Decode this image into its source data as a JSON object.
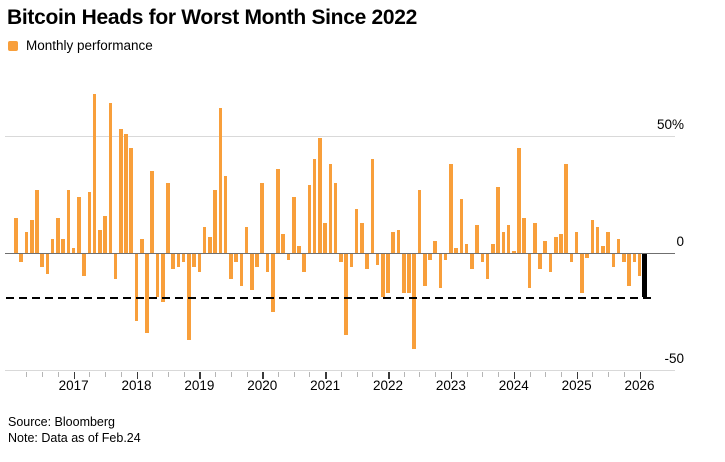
{
  "chart_data": {
    "type": "bar",
    "title": "Bitcoin Heads for Worst Month Since 2022",
    "series_name": "Monthly performance",
    "unit": "percent",
    "start_month": "2016-02",
    "end_month": "2026-02",
    "values": [
      15,
      -4,
      9,
      14,
      27,
      -6,
      -9,
      6,
      15,
      6,
      27,
      2,
      24,
      -10,
      26,
      68,
      10,
      16,
      64,
      -11,
      53,
      51,
      45,
      -29,
      6,
      -34,
      35,
      -19,
      -21,
      30,
      -7,
      -6,
      -4,
      -37,
      -6,
      -8,
      11,
      7,
      27,
      62,
      33,
      -11,
      -4,
      -14,
      11,
      -16,
      -6,
      30,
      -8,
      -25,
      36,
      8,
      -3,
      24,
      3,
      -8,
      29,
      40,
      49,
      13,
      38,
      30,
      -4,
      -35,
      -6,
      19,
      13,
      -7,
      40,
      -5,
      -19,
      -17,
      9,
      10,
      -17,
      -17,
      -41,
      27,
      -14,
      -3,
      5,
      -15,
      -3,
      38,
      2,
      23,
      4,
      -7,
      12,
      -4,
      -11,
      4,
      28,
      9,
      12,
      1,
      45,
      15,
      -15,
      13,
      -7,
      5,
      -8,
      7,
      8,
      38,
      -4,
      9,
      -17,
      -2,
      14,
      11,
      3,
      9,
      -6,
      6,
      -4,
      -14,
      -4,
      -10,
      -19
    ],
    "bar_color": "#F89F3B",
    "highlight_last": {
      "month": "2026-02",
      "value": -19,
      "color": "#000000"
    },
    "dashed_reference_line": -19.3,
    "dashed_line_color": "#000000",
    "yticks": [
      {
        "value": 50,
        "label": "50%"
      },
      {
        "value": 0,
        "label": "0"
      },
      {
        "value": -50,
        "label": "-50"
      }
    ],
    "ylim": [
      -50,
      70
    ],
    "xticks_years": [
      "2017",
      "2018",
      "2019",
      "2020",
      "2021",
      "2022",
      "2023",
      "2024",
      "2025",
      "2026"
    ],
    "minor_tick_months": [
      "Apr",
      "Jul",
      "Oct"
    ],
    "grid": "horizontal",
    "legend_position": "top-left"
  },
  "footer": {
    "source": "Source: Bloomberg",
    "note": "Note: Data as of Feb.24"
  }
}
